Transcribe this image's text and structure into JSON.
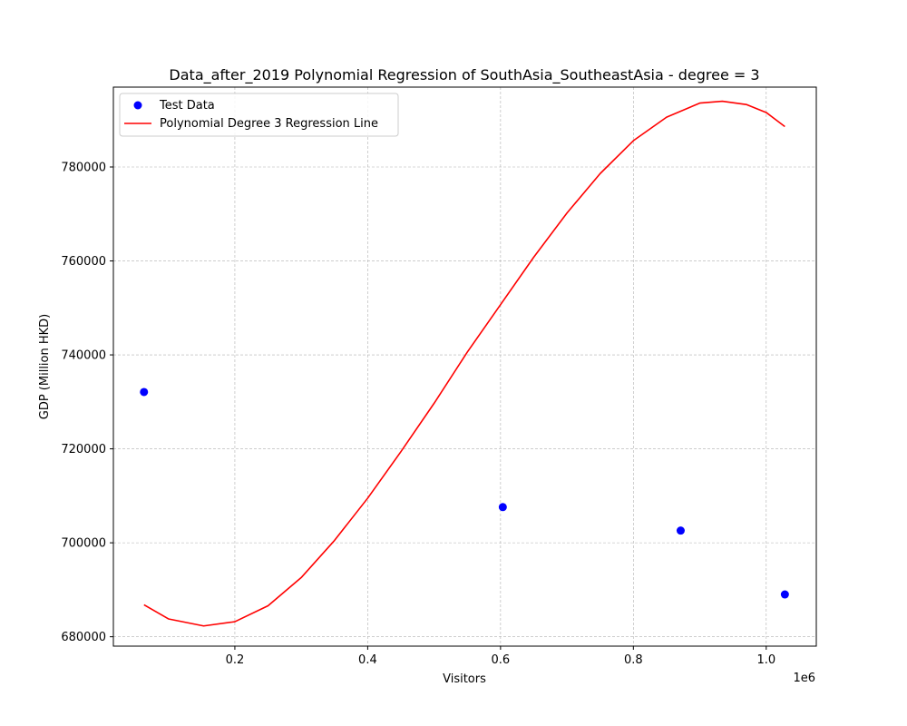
{
  "chart_data": {
    "type": "scatter",
    "title": "Data_after_2019 Polynomial Regression of SouthAsia_SoutheastAsia - degree = 3",
    "xlabel": "Visitors",
    "ylabel": "GDP (Million HKD)",
    "x_offset_label": "1e6",
    "xlim": [
      0.0171,
      1.0754
    ],
    "ylim": [
      678000,
      797000
    ],
    "xticks": [
      0.2,
      0.4,
      0.6,
      0.8,
      1.0
    ],
    "xtick_labels": [
      "0.2",
      "0.4",
      "0.6",
      "0.8",
      "1.0"
    ],
    "yticks": [
      680000,
      700000,
      720000,
      740000,
      760000,
      780000
    ],
    "ytick_labels": [
      "680000",
      "700000",
      "720000",
      "740000",
      "760000",
      "780000"
    ],
    "grid": true,
    "legend": "upper-left",
    "series": [
      {
        "name": "Test Data",
        "kind": "scatter",
        "color": "#0000ff",
        "points": [
          {
            "x": 0.0632,
            "y": 732100
          },
          {
            "x": 0.6034,
            "y": 707600
          },
          {
            "x": 0.8712,
            "y": 702600
          },
          {
            "x": 1.0281,
            "y": 689000
          }
        ]
      },
      {
        "name": "Polynomial Degree 3 Regression Line",
        "kind": "line",
        "color": "#ff0000",
        "points": [
          {
            "x": 0.0632,
            "y": 686800
          },
          {
            "x": 0.1,
            "y": 683800
          },
          {
            "x": 0.153,
            "y": 682300
          },
          {
            "x": 0.2,
            "y": 683200
          },
          {
            "x": 0.25,
            "y": 686600
          },
          {
            "x": 0.3,
            "y": 692600
          },
          {
            "x": 0.35,
            "y": 700500
          },
          {
            "x": 0.4,
            "y": 709500
          },
          {
            "x": 0.45,
            "y": 719400
          },
          {
            "x": 0.5,
            "y": 729700
          },
          {
            "x": 0.55,
            "y": 740600
          },
          {
            "x": 0.6,
            "y": 750700
          },
          {
            "x": 0.65,
            "y": 760800
          },
          {
            "x": 0.7,
            "y": 770200
          },
          {
            "x": 0.75,
            "y": 778600
          },
          {
            "x": 0.8,
            "y": 785600
          },
          {
            "x": 0.85,
            "y": 790600
          },
          {
            "x": 0.9,
            "y": 793600
          },
          {
            "x": 0.934,
            "y": 794000
          },
          {
            "x": 0.97,
            "y": 793300
          },
          {
            "x": 1.0,
            "y": 791600
          },
          {
            "x": 1.0281,
            "y": 788600
          }
        ]
      }
    ]
  }
}
